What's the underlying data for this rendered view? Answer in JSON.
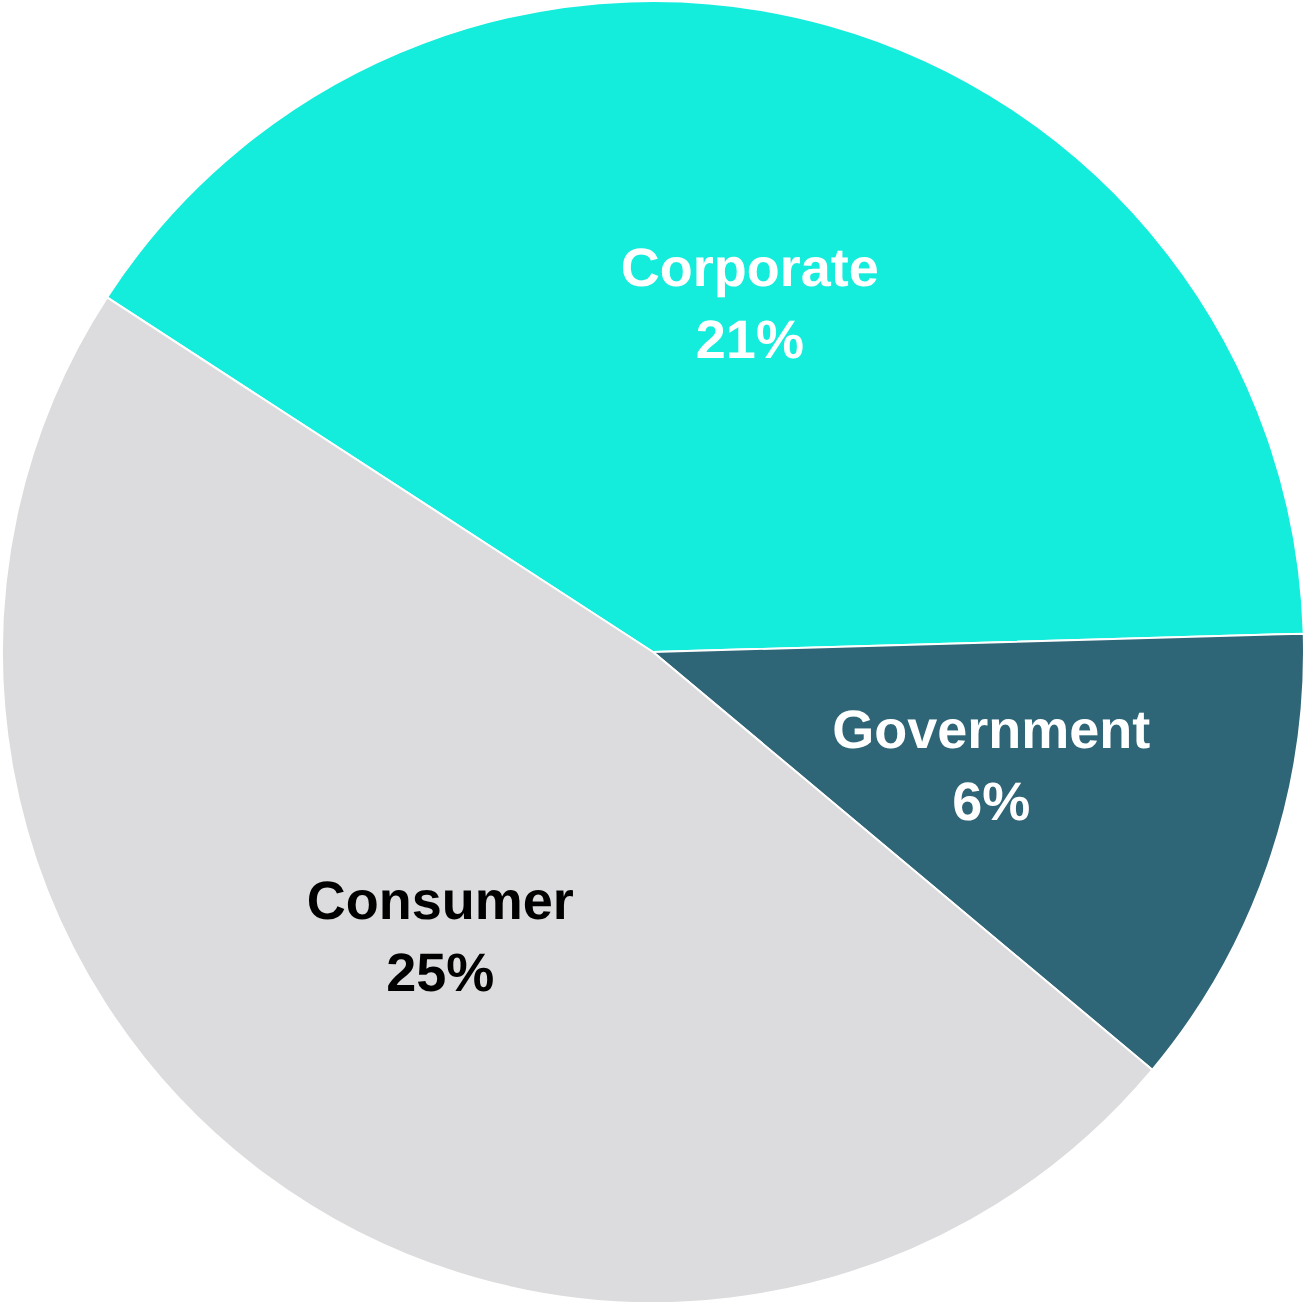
{
  "chart_data": {
    "type": "pie",
    "categories": [
      "Corporate",
      "Government",
      "Consumer"
    ],
    "values": [
      21,
      6,
      25
    ],
    "colors": [
      "#14ecdc",
      "#2e6577",
      "#dcdcde"
    ],
    "value_labels": [
      "21%",
      "6%",
      "25%"
    ]
  }
}
